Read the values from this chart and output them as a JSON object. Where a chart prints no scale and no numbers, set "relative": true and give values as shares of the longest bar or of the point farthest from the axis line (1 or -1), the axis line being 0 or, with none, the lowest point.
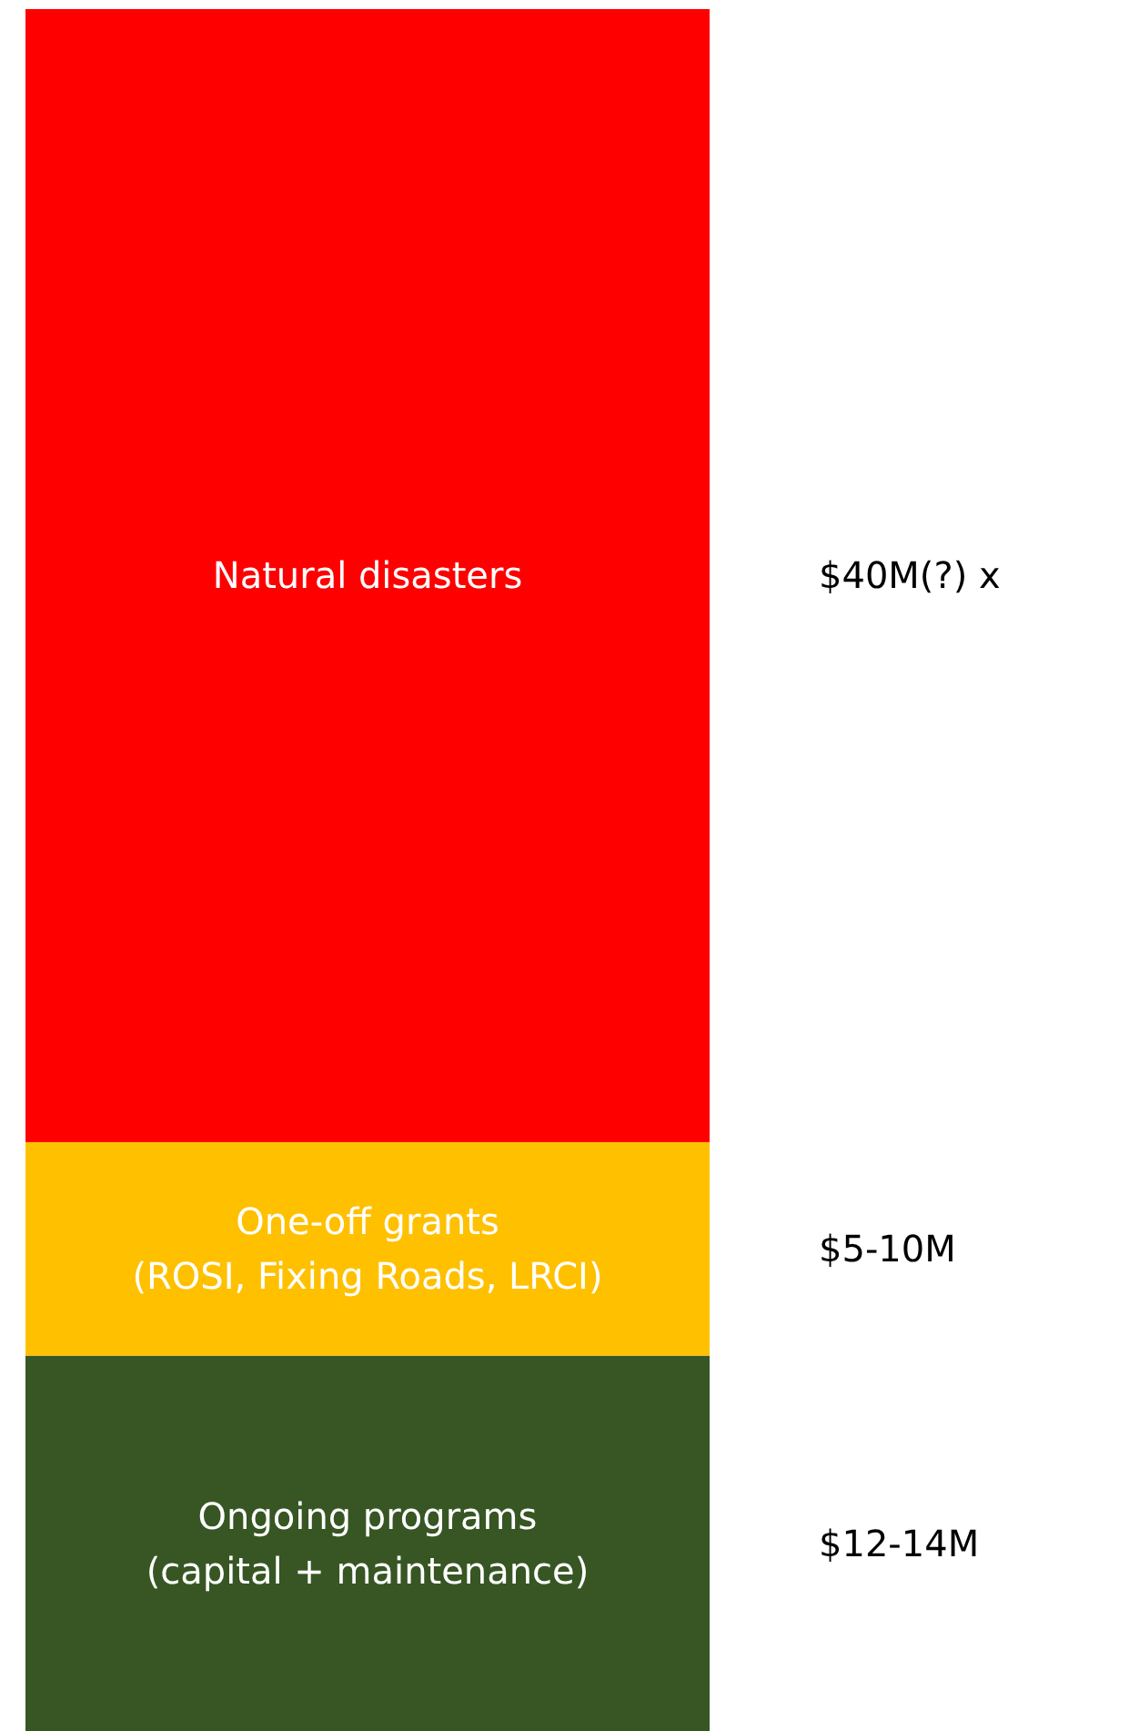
{
  "chart_data": {
    "type": "bar",
    "stacked": true,
    "relative": true,
    "categories": [
      null
    ],
    "series": [
      {
        "name": "Ongoing programs\n(capital + maintenance)",
        "color": "#375623",
        "values": [
          0.218
        ]
      },
      {
        "name": "One-off grants\n(ROSI, Fixing Roads, LRCI)",
        "color": "#ffc000",
        "values": [
          0.124
        ]
      },
      {
        "name": "Natural disasters",
        "color": "#ff0000",
        "values": [
          0.658
        ]
      }
    ],
    "annotations": [
      "$12-14M",
      "$5-10M",
      "$40M(?) x"
    ]
  }
}
